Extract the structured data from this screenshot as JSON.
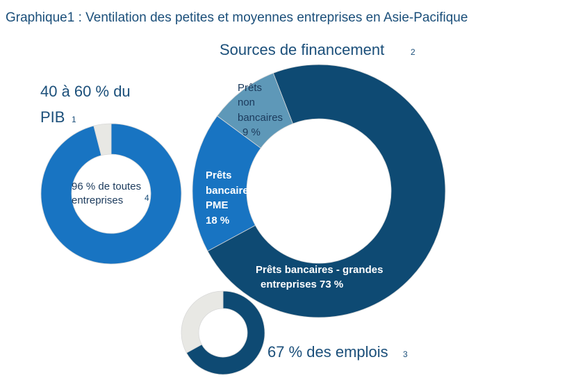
{
  "title": "Graphique1 : Ventilation des petites et moyennes entreprises en Asie-Pacifique",
  "colors": {
    "text": "#1b4f7a",
    "light_grey": "#e8e8e4",
    "mid_blue": "#1874c2",
    "dark_blue": "#0e4a73",
    "steel_blue": "#5e98b8"
  },
  "chart_data": [
    {
      "type": "pie",
      "variant": "donut",
      "title": "40 à 60 % du PIB",
      "title_line1": "40 à 60 % du",
      "title_line2": "PIB",
      "title_note": "1",
      "labels": [
        "96 % de toutes entreprises",
        ""
      ],
      "values": [
        96,
        4
      ],
      "colors": [
        "#1874c2",
        "#e8e8e4"
      ],
      "center_label_line1": "96 % de toutes",
      "center_label_line2": "entreprises",
      "center_label_note": "4"
    },
    {
      "type": "pie",
      "variant": "donut",
      "title": "Sources de financement",
      "title_note": "2",
      "labels": [
        "Prêts bancaires - grandes entreprises 73 %",
        "Prêts bancaires PME 18 %",
        "Prêts non bancaires 9 %"
      ],
      "values": [
        73,
        18,
        9
      ],
      "colors": [
        "#0e4a73",
        "#1874c2",
        "#5e98b8"
      ],
      "slice_labels": {
        "large": [
          "Prêts bancaires - grandes",
          "entreprises 73 %"
        ],
        "pme": [
          "Prêts",
          "bancaires",
          "PME",
          "18 %"
        ],
        "nonbank": [
          "Prêts",
          "non",
          "bancaires",
          "9 %"
        ]
      }
    },
    {
      "type": "pie",
      "variant": "donut",
      "title": "67 % des emplois",
      "title_note": "3",
      "labels": [
        "67 % des emplois",
        ""
      ],
      "values": [
        67,
        33
      ],
      "colors": [
        "#0e4a73",
        "#e8e8e4"
      ]
    }
  ]
}
